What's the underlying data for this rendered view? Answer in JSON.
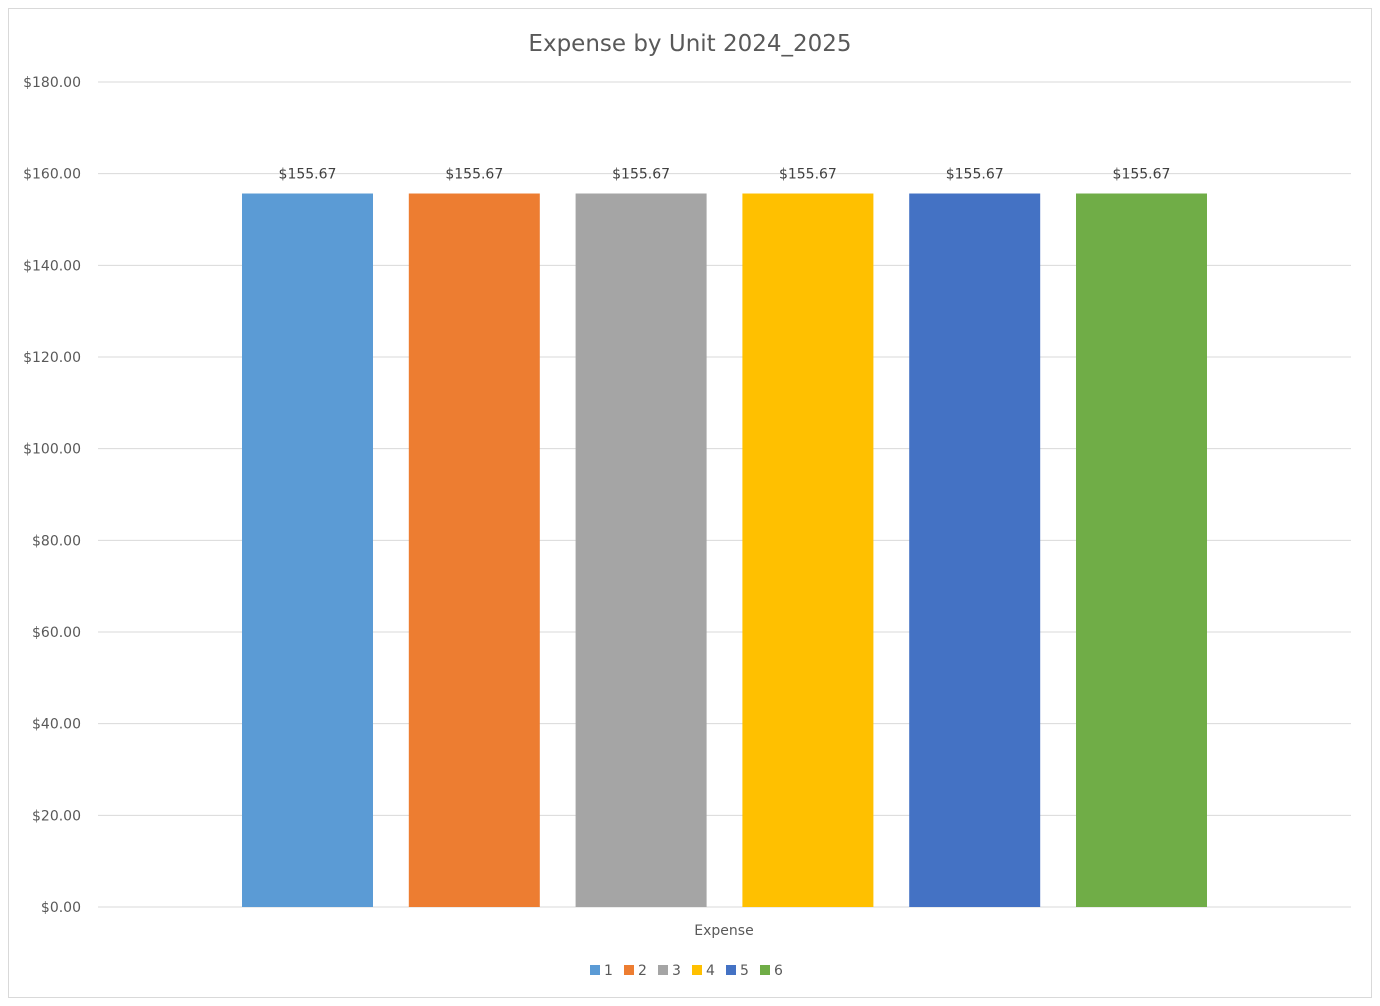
{
  "chart_data": {
    "type": "bar",
    "title": "Expense by Unit 2024_2025",
    "categories": [
      "Expense"
    ],
    "series": [
      {
        "name": "1",
        "values": [
          155.67
        ],
        "color": "#5b9bd5"
      },
      {
        "name": "2",
        "values": [
          155.67
        ],
        "color": "#ed7d31"
      },
      {
        "name": "3",
        "values": [
          155.67
        ],
        "color": "#a5a5a5"
      },
      {
        "name": "4",
        "values": [
          155.67
        ],
        "color": "#ffc000"
      },
      {
        "name": "5",
        "values": [
          155.67
        ],
        "color": "#4472c4"
      },
      {
        "name": "6",
        "values": [
          155.67
        ],
        "color": "#70ad47"
      }
    ],
    "data_labels": [
      "$155.67",
      "$155.67",
      "$155.67",
      "$155.67",
      "$155.67",
      "$155.67"
    ],
    "ylim": [
      0,
      180
    ],
    "yticks": [
      0,
      20,
      40,
      60,
      80,
      100,
      120,
      140,
      160,
      180
    ],
    "ytick_labels": [
      "$0.00",
      "$20.00",
      "$40.00",
      "$60.00",
      "$80.00",
      "$100.00",
      "$120.00",
      "$140.00",
      "$160.00",
      "$180.00"
    ],
    "xlabel": "",
    "ylabel": "",
    "grid": true,
    "legend_position": "bottom",
    "gridline_color": "#d9d9d9"
  }
}
